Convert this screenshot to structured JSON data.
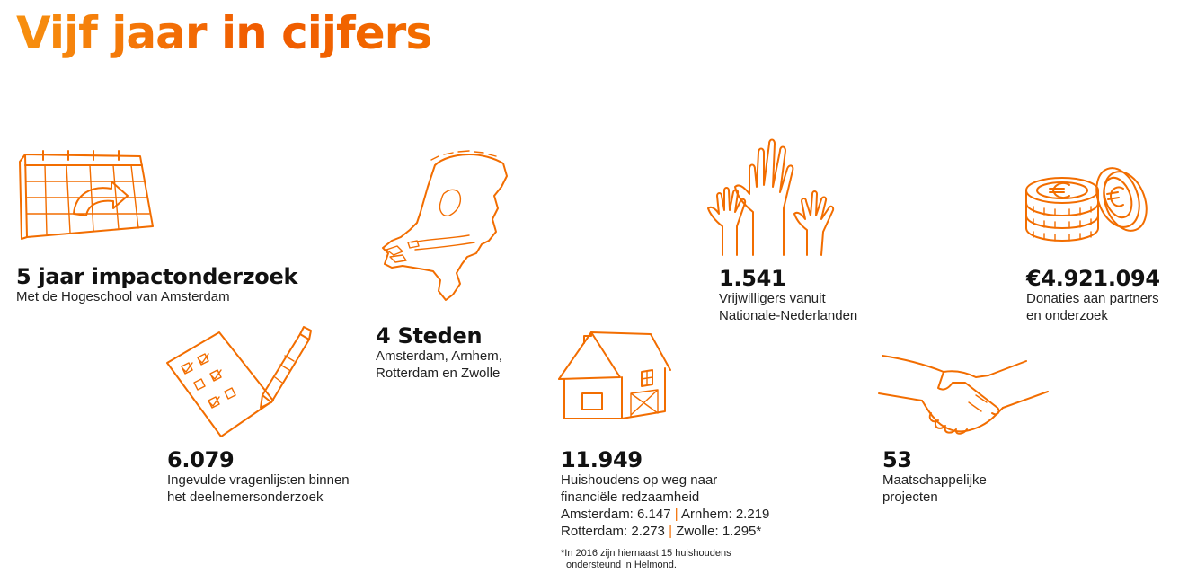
{
  "title": "Vijf jaar in cijfers",
  "accent_color": "#f26d00",
  "stats": {
    "research": {
      "icon": "calendar-icon",
      "number": "5 jaar impactonderzoek",
      "lines": [
        "Met de Hogeschool van Amsterdam"
      ]
    },
    "surveys": {
      "icon": "checklist-pen-icon",
      "number": "6.079",
      "lines": [
        "Ingevulde vragenlijsten binnen",
        "het deelnemersonderzoek"
      ]
    },
    "cities": {
      "icon": "netherlands-map-icon",
      "number": "4 Steden",
      "lines": [
        "Amsterdam, Arnhem,",
        "Rotterdam en Zwolle"
      ]
    },
    "households": {
      "icon": "house-icon",
      "number": "11.949",
      "lines": [
        "Huishoudens op weg naar",
        "financiële redzaamheid"
      ],
      "breakdown": {
        "amsterdam": "Amsterdam: 6.147",
        "arnhem": "Arnhem: 2.219",
        "rotterdam": "Rotterdam: 2.273",
        "zwolle": "Zwolle: 1.295*",
        "separator": "|"
      },
      "footnote": [
        "*In 2016 zijn hiernaast 15 huishoudens",
        "ondersteund in Helmond."
      ]
    },
    "volunteers": {
      "icon": "raised-hands-icon",
      "number": "1.541",
      "lines": [
        "Vrijwilligers vanuit",
        "Nationale-Nederlanden"
      ]
    },
    "projects": {
      "icon": "handshake-icon",
      "number": "53",
      "lines": [
        "Maatschappelijke",
        "projecten"
      ]
    },
    "donations": {
      "icon": "euro-coins-icon",
      "number": "€4.921.094",
      "lines": [
        "Donaties aan partners",
        "en onderzoek"
      ]
    }
  }
}
